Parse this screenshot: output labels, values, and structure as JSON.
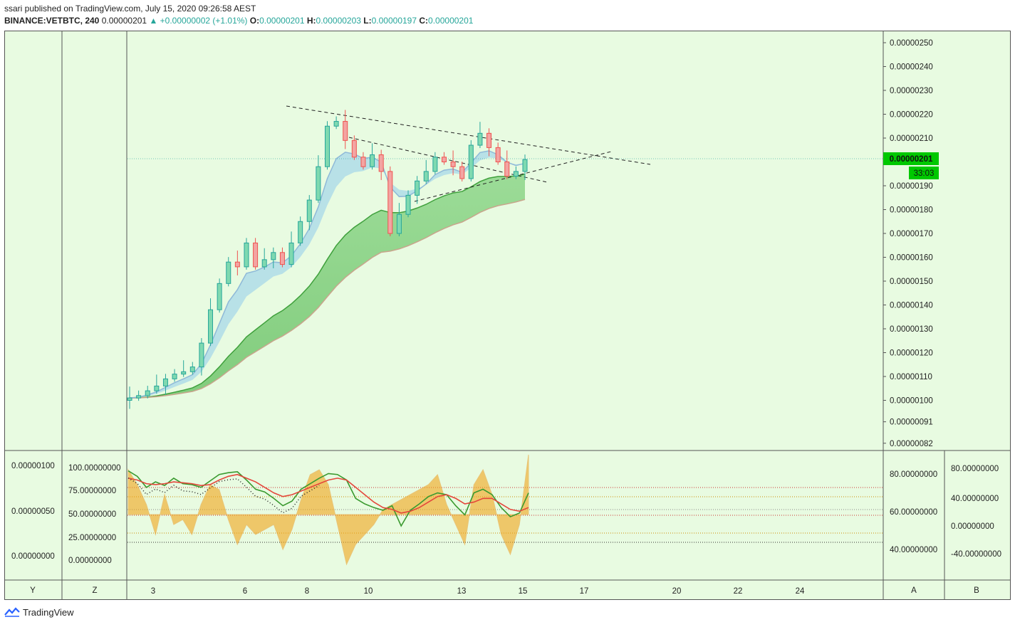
{
  "header": {
    "publisher_line": "ssari published on TradingView.com, July 15, 2020 09:26:58 AEST",
    "symbol": "BINANCE:VETBTC, 240",
    "last": "0.00000201",
    "change": "▲ +0.00000002 (+1.01%)",
    "o_label": "O:",
    "o": "0.00000201",
    "h_label": "H:",
    "h": "0.00000203",
    "l_label": "L:",
    "l": "0.00000197",
    "c_label": "C:",
    "c": "0.00000201"
  },
  "price_badge": {
    "value": "0.00000201",
    "countdown": "33:03"
  },
  "colors": {
    "bull": "#26a69a",
    "bear": "#ef5350",
    "badge": "#00c800",
    "background": "#e8fbe1",
    "cloud_green": "#7fd07f",
    "ribbon_blue": "#a8d8e8",
    "osc_fill": "#f2a51a"
  },
  "footer": {
    "brand": "TradingView"
  },
  "corner_labels": {
    "y": "Y",
    "z": "Z",
    "a": "A",
    "b": "B"
  },
  "chart_data": [
    {
      "type": "candlestick",
      "title": "BINANCE:VETBTC, 240",
      "y_axis_ticks": [
        "0.00000250",
        "0.00000240",
        "0.00000230",
        "0.00000220",
        "0.00000210",
        "0.00000190",
        "0.00000180",
        "0.00000170",
        "0.00000160",
        "0.00000150",
        "0.00000140",
        "0.00000130",
        "0.00000120",
        "0.00000110",
        "0.00000100",
        "0.00000091",
        "0.00000082"
      ],
      "ylim": [
        8.1e-07,
        2.52e-06
      ],
      "x_ticks": [
        "3",
        "6",
        "8",
        "10",
        "13",
        "15",
        "17",
        "20",
        "22",
        "24"
      ],
      "approx_close_path": [
        1.01e-06,
        1.02e-06,
        1.04e-06,
        1.06e-06,
        1.09e-06,
        1.11e-06,
        1.12e-06,
        1.14e-06,
        1.24e-06,
        1.38e-06,
        1.49e-06,
        1.58e-06,
        1.56e-06,
        1.66e-06,
        1.56e-06,
        1.59e-06,
        1.62e-06,
        1.57e-06,
        1.66e-06,
        1.75e-06,
        1.84e-06,
        1.98e-06,
        2.15e-06,
        2.17e-06,
        2.09e-06,
        2.02e-06,
        1.98e-06,
        2.03e-06,
        1.96e-06,
        1.7e-06,
        1.78e-06,
        1.86e-06,
        1.92e-06,
        1.96e-06,
        2.02e-06,
        2e-06,
        1.98e-06,
        1.93e-06,
        2.07e-06,
        2.12e-06,
        2.06e-06,
        2e-06,
        1.94e-06,
        1.96e-06,
        2.01e-06
      ],
      "overlays": [
        "blue EMA ribbon",
        "green EMA cloud"
      ],
      "trendlines": "converging dashed triangle"
    },
    {
      "type": "line",
      "name": "oscillator pane",
      "left_axis_ticks": [
        "0.00000100",
        "0.00000050",
        "0.00000000"
      ],
      "left_inner_ticks": [
        "100.00000000",
        "75.00000000",
        "50.00000000",
        "25.00000000",
        "0.00000000"
      ],
      "right_inner_ticks": [
        "80.00000000",
        "60.00000000",
        "40.00000000"
      ],
      "right_outer_ticks": [
        "80.00000000",
        "40.00000000",
        "0.00000000",
        "-40.00000000"
      ],
      "series": [
        {
          "name": "green",
          "values": [
            98,
            92,
            80,
            86,
            82,
            90,
            84,
            83,
            80,
            87,
            94,
            96,
            97,
            88,
            78,
            75,
            68,
            60,
            65,
            78,
            84,
            90,
            95,
            94,
            88,
            68,
            62,
            58,
            55,
            60,
            38,
            55,
            62,
            70,
            74,
            72,
            60,
            50,
            74,
            78,
            72,
            58,
            48,
            52,
            74
          ]
        },
        {
          "name": "red",
          "values": [
            90,
            88,
            84,
            83,
            84,
            86,
            85,
            84,
            82,
            83,
            88,
            92,
            94,
            90,
            86,
            80,
            74,
            70,
            72,
            76,
            80,
            84,
            88,
            90,
            88,
            80,
            72,
            64,
            58,
            56,
            52,
            54,
            58,
            64,
            70,
            72,
            68,
            62,
            64,
            68,
            68,
            62,
            56,
            54,
            58
          ]
        },
        {
          "name": "orange_fill",
          "values": [
            45,
            30,
            10,
            -20,
            20,
            -10,
            -5,
            -20,
            10,
            30,
            25,
            -5,
            -30,
            -10,
            -20,
            -15,
            -10,
            -35,
            -15,
            15,
            40,
            45,
            30,
            -10,
            -50,
            -30,
            -20,
            -10,
            5,
            10,
            15,
            20,
            25,
            30,
            40,
            10,
            -10,
            -30,
            30,
            45,
            20,
            -20,
            -40,
            -10,
            60
          ]
        }
      ]
    }
  ]
}
